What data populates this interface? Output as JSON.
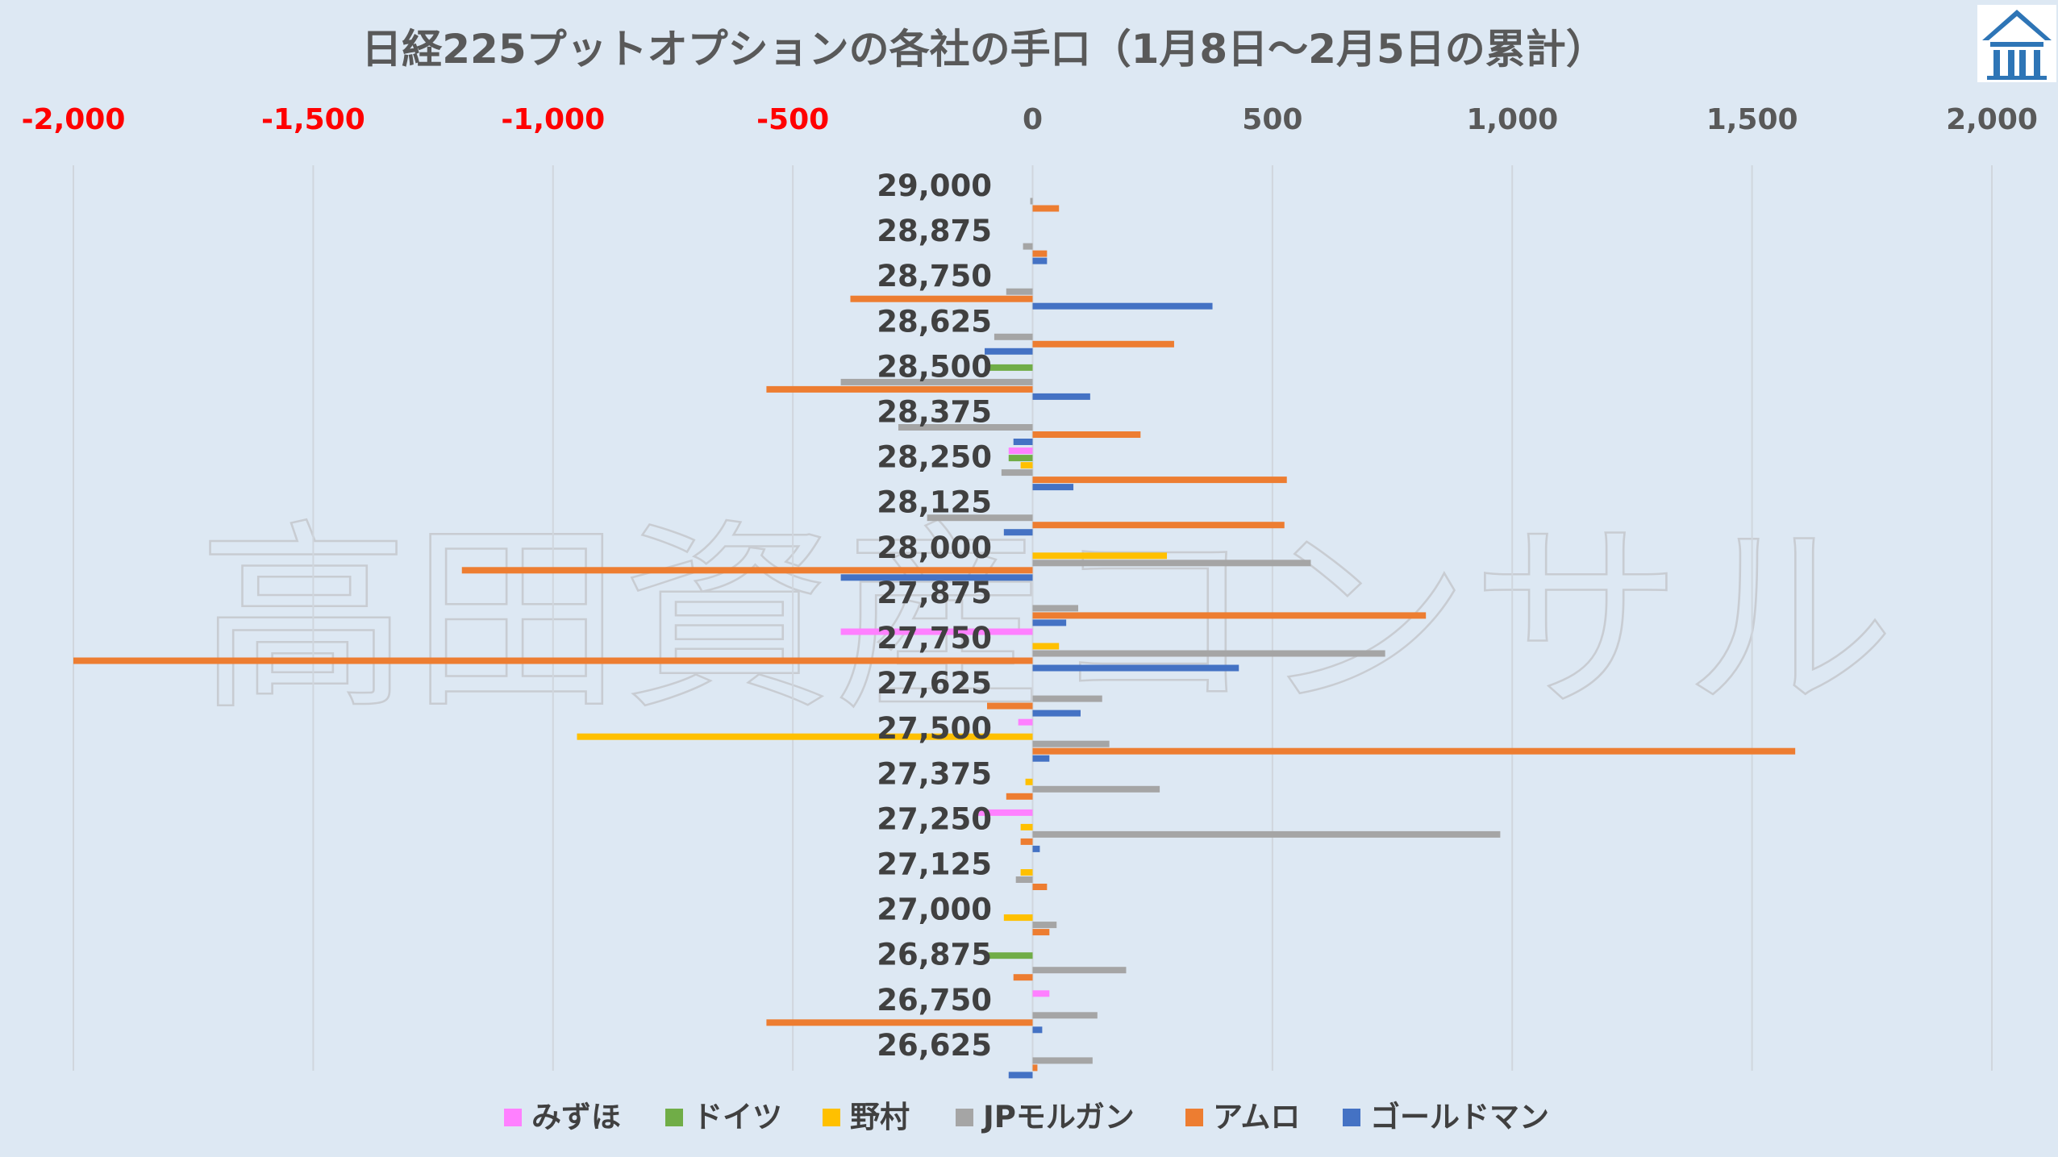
{
  "watermark": "高田資産コンサル",
  "chart_data": {
    "type": "bar",
    "orientation": "horizontal",
    "title": "日経225プットオプションの各社の手口（1月8日～2月5日の累計）",
    "xlim": [
      -2000,
      2000
    ],
    "xticks": [
      -2000,
      -1500,
      -1000,
      -500,
      0,
      500,
      1000,
      1500,
      2000
    ],
    "xtick_labels": [
      "-2,000",
      "-1,500",
      "-1,000",
      "-500",
      "0",
      "500",
      "1,000",
      "1,500",
      "2,000"
    ],
    "negative_tick_color": "#ff0000",
    "positive_tick_color": "#595959",
    "grid": "vertical",
    "legend_position": "bottom",
    "categories": [
      "29,000",
      "28,875",
      "28,750",
      "28,625",
      "28,500",
      "28,375",
      "28,250",
      "28,125",
      "28,000",
      "27,875",
      "27,750",
      "27,625",
      "27,500",
      "27,375",
      "27,250",
      "27,125",
      "27,000",
      "26,875",
      "26,750",
      "26,625"
    ],
    "series": [
      {
        "name": "みずほ",
        "color": "#ff80ff",
        "values": [
          0,
          0,
          0,
          0,
          0,
          0,
          -50,
          0,
          0,
          0,
          -400,
          0,
          -30,
          0,
          -120,
          0,
          0,
          0,
          35,
          0
        ]
      },
      {
        "name": "ドイツ",
        "color": "#70ad47",
        "values": [
          0,
          0,
          0,
          0,
          -90,
          0,
          -50,
          0,
          0,
          0,
          0,
          0,
          0,
          0,
          0,
          0,
          0,
          -100,
          0,
          0
        ]
      },
      {
        "name": "野村",
        "color": "#ffc000",
        "values": [
          0,
          0,
          0,
          0,
          0,
          0,
          -25,
          0,
          280,
          0,
          55,
          0,
          -950,
          -15,
          -25,
          -25,
          -60,
          0,
          0,
          0
        ]
      },
      {
        "name": "JPモルガン",
        "color": "#a5a5a5",
        "values": [
          -5,
          -20,
          -55,
          -80,
          -400,
          -280,
          -65,
          -220,
          580,
          95,
          735,
          145,
          160,
          265,
          975,
          -35,
          50,
          195,
          135,
          125
        ]
      },
      {
        "name": "アムロ",
        "color": "#ed7d31",
        "values": [
          55,
          30,
          -380,
          295,
          -555,
          225,
          530,
          525,
          -1190,
          820,
          -2000,
          -95,
          1590,
          -55,
          -25,
          30,
          35,
          -40,
          -555,
          10
        ]
      },
      {
        "name": "ゴールドマン",
        "color": "#4472c4",
        "values": [
          0,
          30,
          375,
          -100,
          120,
          -40,
          85,
          -60,
          -400,
          70,
          430,
          100,
          35,
          0,
          15,
          0,
          0,
          0,
          20,
          -50
        ]
      }
    ]
  }
}
